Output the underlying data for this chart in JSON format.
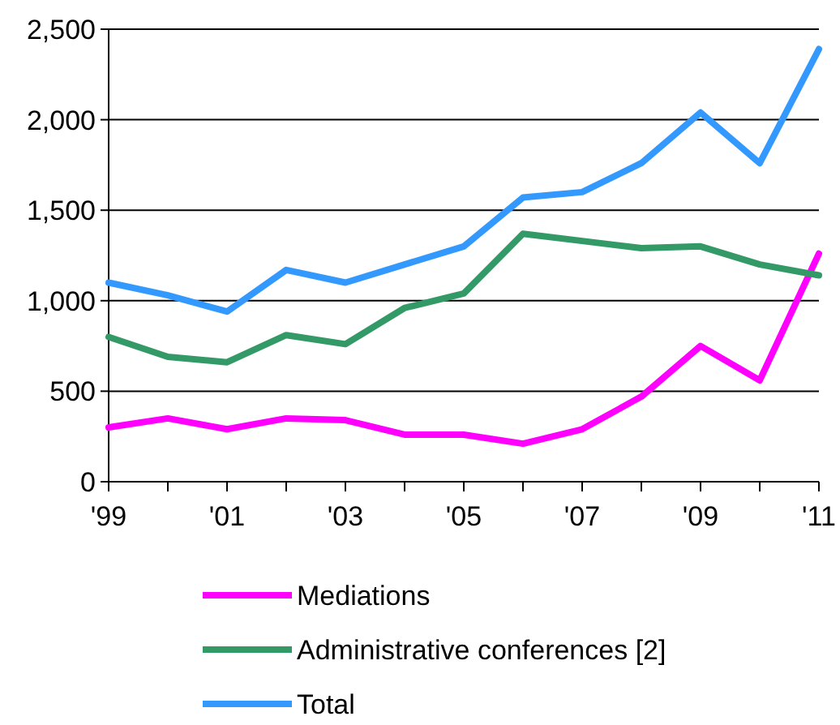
{
  "chart_data": {
    "type": "line",
    "x": [
      1999,
      2000,
      2001,
      2002,
      2003,
      2004,
      2005,
      2006,
      2007,
      2008,
      2009,
      2010,
      2011
    ],
    "series": [
      {
        "name": "Mediations",
        "color": "#ff00ff",
        "values": [
          300,
          350,
          290,
          350,
          340,
          260,
          260,
          210,
          290,
          470,
          750,
          560,
          1260
        ]
      },
      {
        "name": "Administrative conferences [2]",
        "color": "#339966",
        "values": [
          800,
          690,
          660,
          810,
          760,
          960,
          1040,
          1370,
          1330,
          1290,
          1300,
          1200,
          1140
        ]
      },
      {
        "name": "Total",
        "color": "#3399ff",
        "values": [
          1100,
          1030,
          940,
          1170,
          1100,
          1200,
          1300,
          1570,
          1600,
          1760,
          2040,
          1760,
          2390
        ]
      }
    ],
    "xlim": [
      1999,
      2011
    ],
    "xticks": [
      {
        "value": 1999,
        "label": "'99"
      },
      {
        "value": 2000,
        "label": null
      },
      {
        "value": 2001,
        "label": "'01"
      },
      {
        "value": 2002,
        "label": null
      },
      {
        "value": 2003,
        "label": "'03"
      },
      {
        "value": 2004,
        "label": null
      },
      {
        "value": 2005,
        "label": "'05"
      },
      {
        "value": 2006,
        "label": null
      },
      {
        "value": 2007,
        "label": "'07"
      },
      {
        "value": 2008,
        "label": null
      },
      {
        "value": 2009,
        "label": "'09"
      },
      {
        "value": 2010,
        "label": null
      },
      {
        "value": 2011,
        "label": "'11"
      }
    ],
    "ylim": [
      0,
      2500
    ],
    "yticks": [
      {
        "value": 0,
        "label": "0"
      },
      {
        "value": 500,
        "label": "500"
      },
      {
        "value": 1000,
        "label": "1,000"
      },
      {
        "value": 1500,
        "label": "1,500"
      },
      {
        "value": 2000,
        "label": "2,000"
      },
      {
        "value": 2500,
        "label": "2,500"
      }
    ],
    "grid": "y",
    "legend": "bottom",
    "marker": "none",
    "line_style": "solid"
  }
}
